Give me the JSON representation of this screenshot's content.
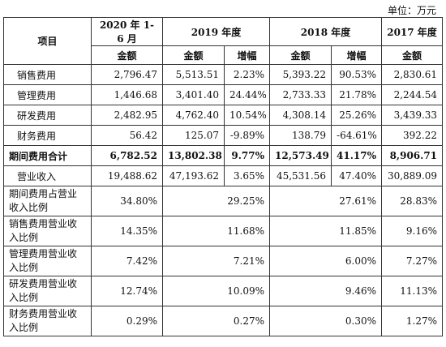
{
  "unit_label": "单位：万元",
  "header": {
    "item": "项目",
    "periods": [
      "2020 年 1-6 月",
      "2019 年度",
      "2018 年度",
      "2017 年度"
    ],
    "sub": [
      "金额",
      "金额",
      "增幅",
      "金额",
      "增幅",
      "金额"
    ]
  },
  "rows": [
    {
      "label": "销售费用",
      "cells": [
        "2,796.47",
        "5,513.51",
        "2.23%",
        "5,393.22",
        "90.53%",
        "2,830.61"
      ]
    },
    {
      "label": "管理费用",
      "cells": [
        "1,446.68",
        "3,401.40",
        "24.44%",
        "2,733.33",
        "21.78%",
        "2,244.54"
      ]
    },
    {
      "label": "研发费用",
      "cells": [
        "2,482.95",
        "4,762.40",
        "10.54%",
        "4,308.14",
        "25.26%",
        "3,439.33"
      ]
    },
    {
      "label": "财务费用",
      "cells": [
        "56.42",
        "125.07",
        "-9.89%",
        "138.79",
        "-64.61%",
        "392.22"
      ]
    },
    {
      "label": "期间费用合计",
      "cells": [
        "6,782.52",
        "13,802.38",
        "9.77%",
        "12,573.49",
        "41.17%",
        "8,906.71"
      ]
    },
    {
      "label": "营业收入",
      "cells": [
        "19,488.62",
        "47,193.62",
        "3.65%",
        "45,531.56",
        "47.40%",
        "30,889.09"
      ]
    }
  ],
  "ratio_rows": [
    {
      "label": "期间费用占营业收入比例",
      "cells": [
        "34.80%",
        "29.25%",
        "27.61%",
        "28.83%"
      ]
    },
    {
      "label": "销售费用营业收入比例",
      "cells": [
        "14.35%",
        "11.68%",
        "11.85%",
        "9.16%"
      ]
    },
    {
      "label": "管理费用营业收入比例",
      "cells": [
        "7.42%",
        "7.21%",
        "6.00%",
        "7.27%"
      ]
    },
    {
      "label": "研发费用营业收入比例",
      "cells": [
        "12.74%",
        "10.09%",
        "9.46%",
        "11.13%"
      ]
    },
    {
      "label": "财务费用营业收入比例",
      "cells": [
        "0.29%",
        "0.27%",
        "0.30%",
        "1.27%"
      ]
    }
  ]
}
